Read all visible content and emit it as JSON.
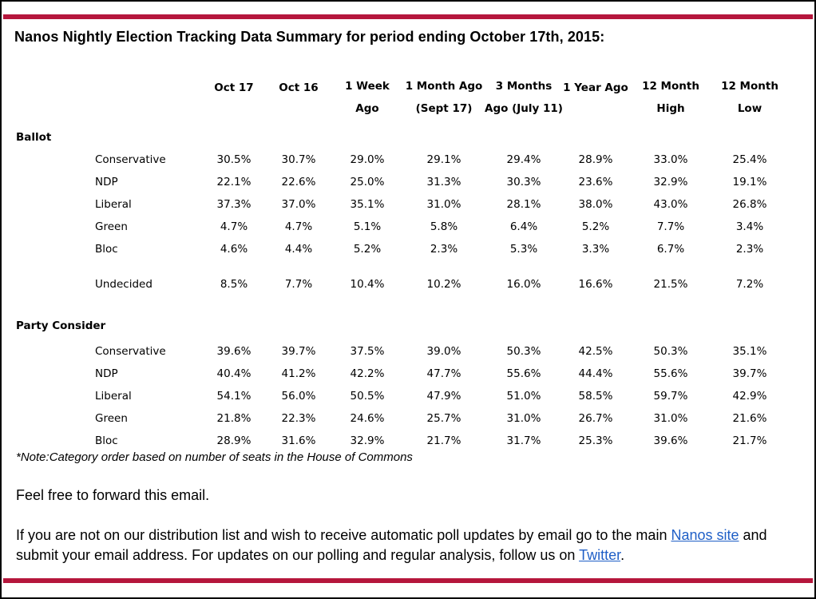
{
  "title": "Nanos Nightly Election Tracking Data Summary for period ending October 17th, 2015:",
  "columns": [
    {
      "line1": "",
      "line2": "Oct 17"
    },
    {
      "line1": "",
      "line2": "Oct 16"
    },
    {
      "line1": "1 Week",
      "line2": "Ago"
    },
    {
      "line1": "1 Month Ago",
      "line2": "(Sept 17)"
    },
    {
      "line1": "3 Months",
      "line2": "Ago (July 11)"
    },
    {
      "line1": "",
      "line2": "1 Year Ago"
    },
    {
      "line1": "12 Month",
      "line2": "High"
    },
    {
      "line1": "12 Month",
      "line2": "Low"
    }
  ],
  "sections": [
    {
      "name": "Ballot",
      "rows": [
        {
          "label": "Conservative",
          "values": [
            "30.5%",
            "30.7%",
            "29.0%",
            "29.1%",
            "29.4%",
            "28.9%",
            "33.0%",
            "25.4%"
          ]
        },
        {
          "label": "NDP",
          "values": [
            "22.1%",
            "22.6%",
            "25.0%",
            "31.3%",
            "30.3%",
            "23.6%",
            "32.9%",
            "19.1%"
          ]
        },
        {
          "label": "Liberal",
          "values": [
            "37.3%",
            "37.0%",
            "35.1%",
            "31.0%",
            "28.1%",
            "38.0%",
            "43.0%",
            "26.8%"
          ]
        },
        {
          "label": "Green",
          "values": [
            "4.7%",
            "4.7%",
            "5.1%",
            "5.8%",
            "6.4%",
            "5.2%",
            "7.7%",
            "3.4%"
          ]
        },
        {
          "label": "Bloc",
          "values": [
            "4.6%",
            "4.4%",
            "5.2%",
            "2.3%",
            "5.3%",
            "3.3%",
            "6.7%",
            "2.3%"
          ]
        },
        {
          "label": "Undecided",
          "values": [
            "8.5%",
            "7.7%",
            "10.4%",
            "10.2%",
            "16.0%",
            "16.6%",
            "21.5%",
            "7.2%"
          ]
        }
      ]
    },
    {
      "name": "Party Consider",
      "rows": [
        {
          "label": "Conservative",
          "values": [
            "39.6%",
            "39.7%",
            "37.5%",
            "39.0%",
            "50.3%",
            "42.5%",
            "50.3%",
            "35.1%"
          ]
        },
        {
          "label": "NDP",
          "values": [
            "40.4%",
            "41.2%",
            "42.2%",
            "47.7%",
            "55.6%",
            "44.4%",
            "55.6%",
            "39.7%"
          ]
        },
        {
          "label": "Liberal",
          "values": [
            "54.1%",
            "56.0%",
            "50.5%",
            "47.9%",
            "51.0%",
            "58.5%",
            "59.7%",
            "42.9%"
          ]
        },
        {
          "label": "Green",
          "values": [
            "21.8%",
            "22.3%",
            "24.6%",
            "25.7%",
            "31.0%",
            "26.7%",
            "31.0%",
            "21.6%"
          ]
        },
        {
          "label": "Bloc",
          "values": [
            "28.9%",
            "31.6%",
            "32.9%",
            "21.7%",
            "31.7%",
            "25.3%",
            "39.6%",
            "21.7%"
          ]
        }
      ]
    }
  ],
  "note": "*Note:Category order based on number of seats in the House of Commons",
  "forward_text": "Feel free to forward this email.",
  "footer": {
    "part1": "If you are not on our distribution list and wish to receive automatic poll updates by email go to the main ",
    "link1": "Nanos site",
    "part2": " and submit your email address. For updates on our polling and regular analysis, follow us on ",
    "link2": "Twitter",
    "part3": "."
  },
  "colors": {
    "accent_bar": "#b5163c",
    "link": "#1f5fc7"
  }
}
